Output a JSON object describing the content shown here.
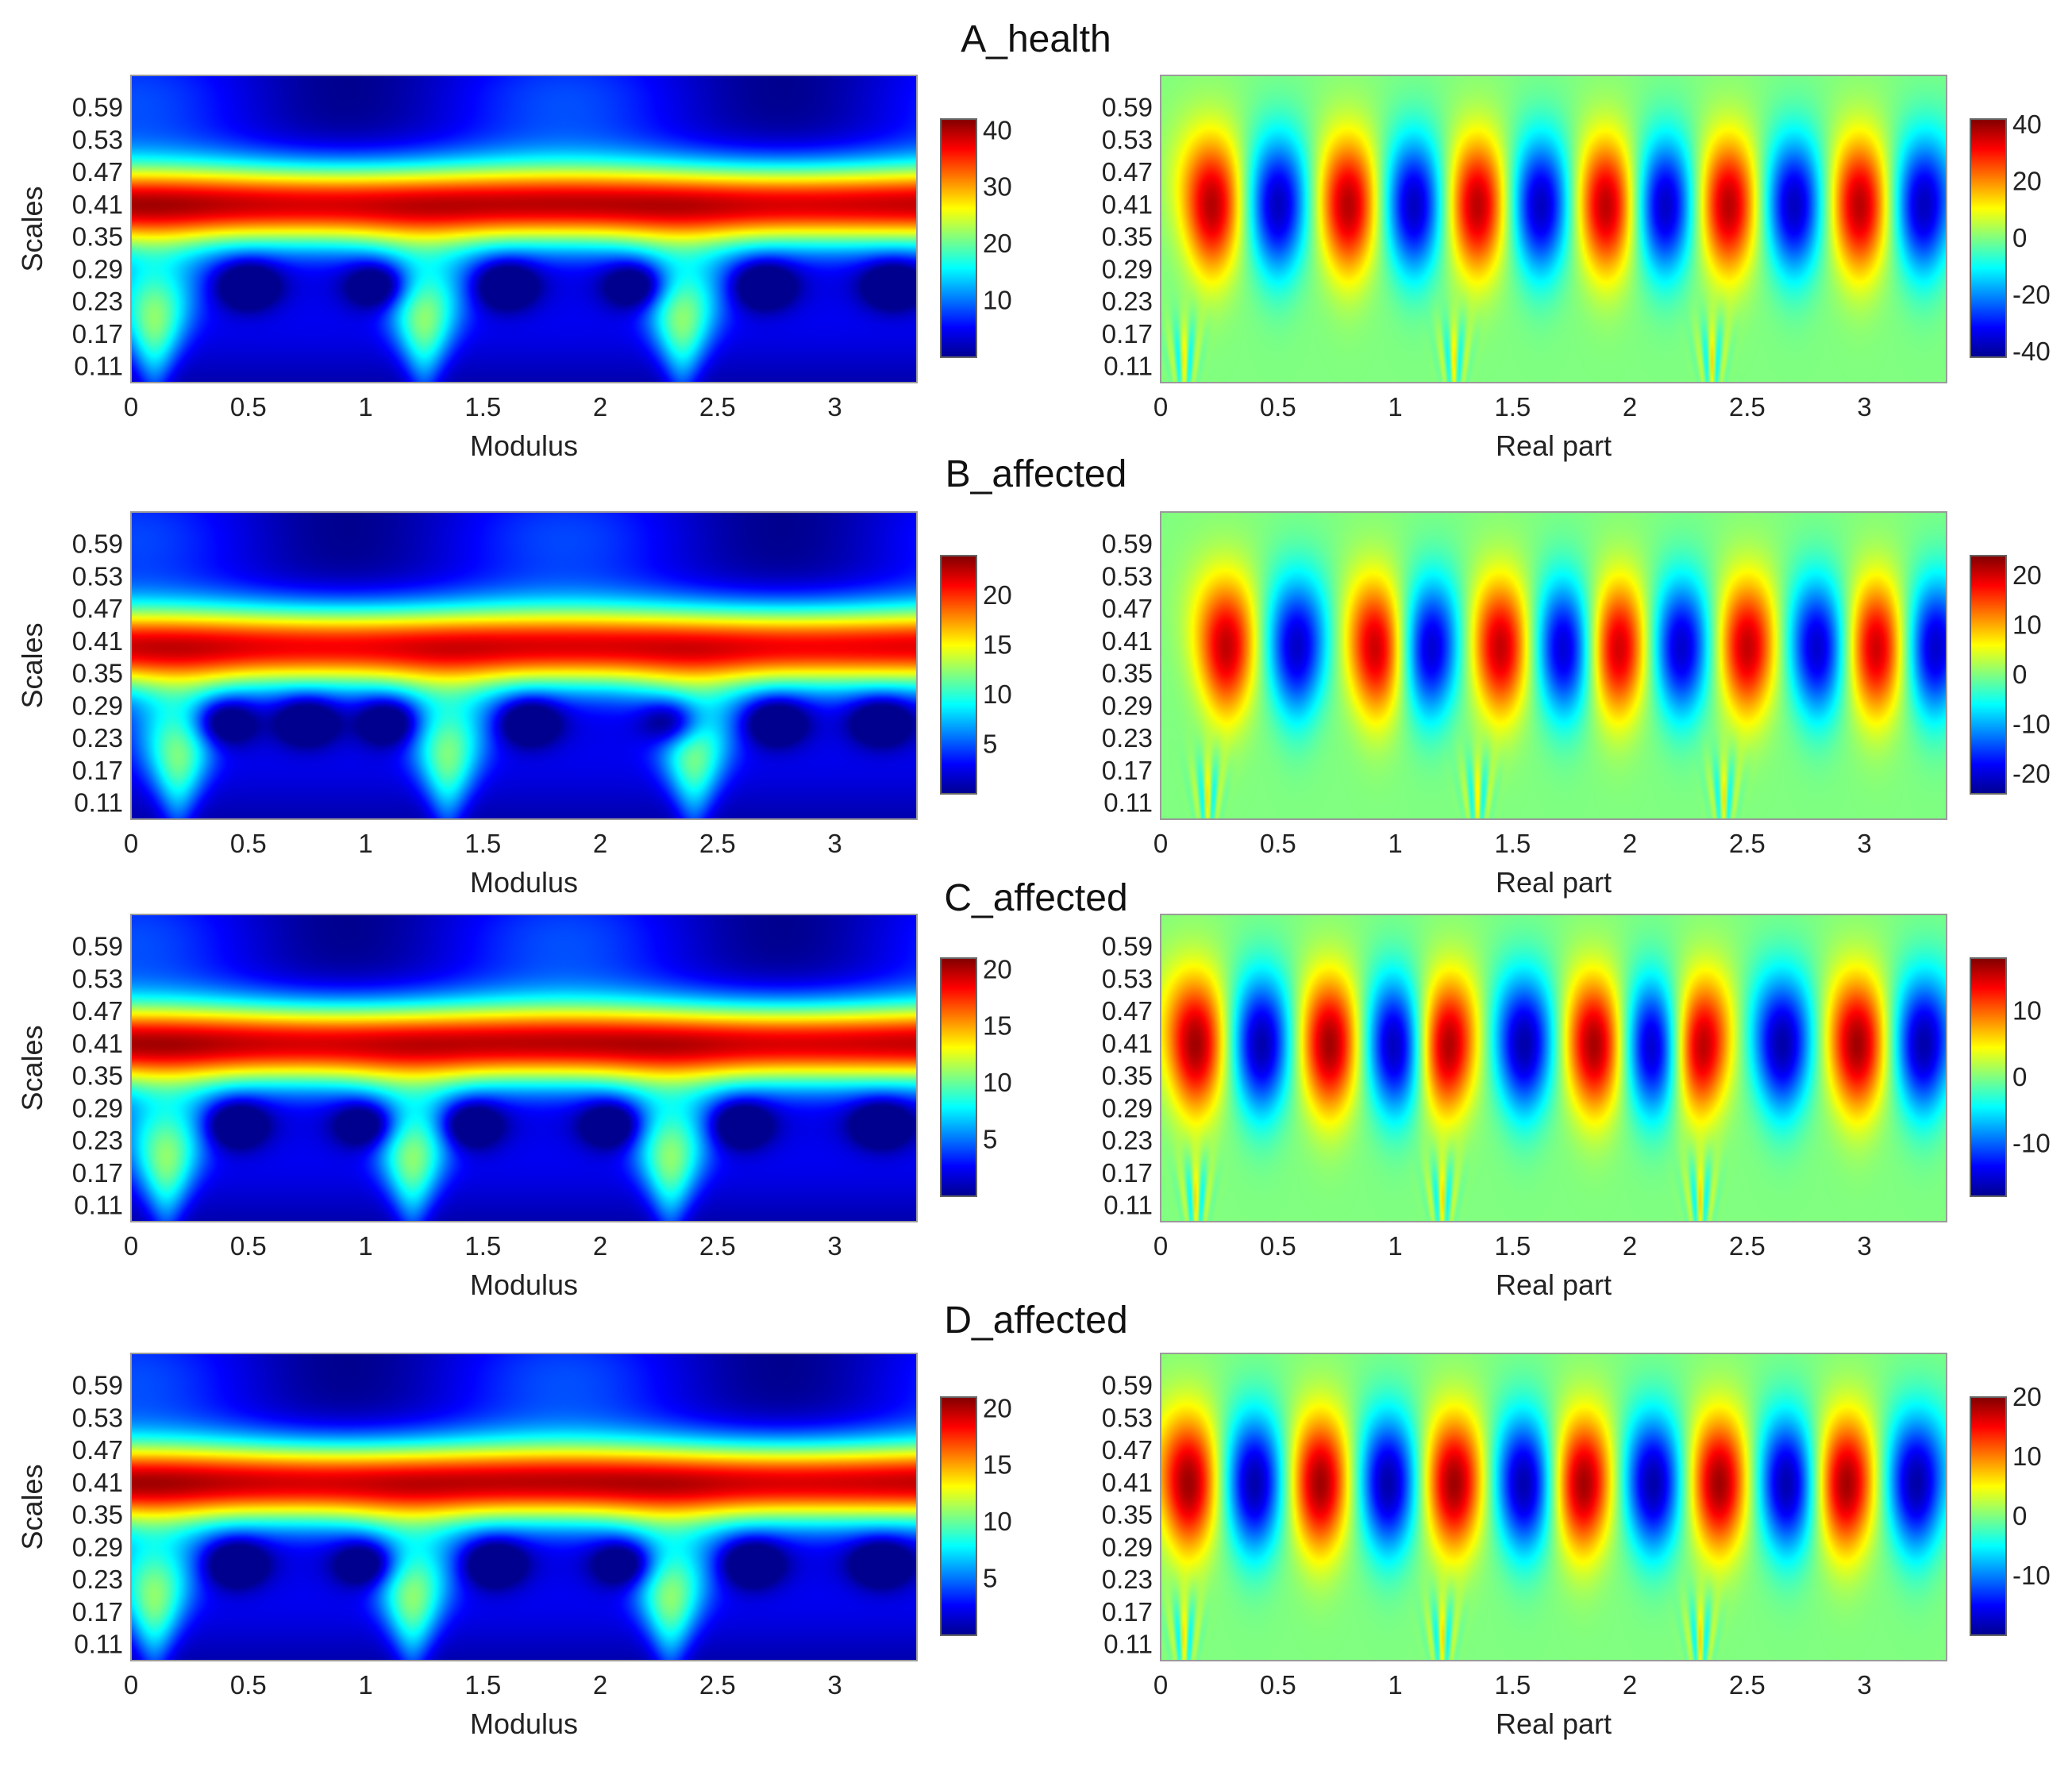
{
  "row_titles": [
    "A_health",
    "B_affected",
    "C_affected",
    "D_affected"
  ],
  "colormap": [
    "#00008f",
    "#0000ff",
    "#0080ff",
    "#00ffff",
    "#80ff80",
    "#ffff00",
    "#ff8000",
    "#ff0000",
    "#800000"
  ],
  "chart_data": [
    {
      "type": "heatmap",
      "row": "A_health",
      "kind": "modulus",
      "title": "",
      "xlabel": "Modulus",
      "ylabel": "Scales",
      "xlim": [
        0,
        3.35
      ],
      "ylim": [
        0.08,
        0.65
      ],
      "xticks": [
        0,
        0.5,
        1,
        1.5,
        2,
        2.5,
        3
      ],
      "xtick_labels": [
        "0",
        "0.5",
        "1",
        "1.5",
        "2",
        "2.5",
        "3"
      ],
      "yticks": [
        0.11,
        0.17,
        0.23,
        0.29,
        0.35,
        0.41,
        0.47,
        0.53,
        0.59
      ],
      "ytick_labels": [
        "0.11",
        "0.17",
        "0.23",
        "0.29",
        "0.35",
        "0.41",
        "0.47",
        "0.53",
        "0.59"
      ],
      "colorbar": {
        "min": 0,
        "max": 42,
        "ticks": [
          10,
          20,
          30,
          40
        ]
      },
      "ridge_scale": 0.41,
      "ridge_peak": 38,
      "cone_x": [
        0.1,
        1.25,
        2.35
      ],
      "hole_x": [
        0.5,
        1.05,
        1.6,
        2.15,
        2.7,
        3.25
      ]
    },
    {
      "type": "heatmap",
      "row": "A_health",
      "kind": "real",
      "title": "",
      "xlabel": "Real part",
      "ylabel": "",
      "xlim": [
        0,
        3.35
      ],
      "ylim": [
        0.08,
        0.65
      ],
      "xticks": [
        0,
        0.5,
        1,
        1.5,
        2,
        2.5,
        3
      ],
      "xtick_labels": [
        "0",
        "0.5",
        "1",
        "1.5",
        "2",
        "2.5",
        "3"
      ],
      "yticks": [
        0.11,
        0.17,
        0.23,
        0.29,
        0.35,
        0.41,
        0.47,
        0.53,
        0.59
      ],
      "ytick_labels": [
        "0.11",
        "0.17",
        "0.23",
        "0.29",
        "0.35",
        "0.41",
        "0.47",
        "0.53",
        "0.59"
      ],
      "colorbar": {
        "min": -42,
        "max": 42,
        "ticks": [
          40,
          20,
          0,
          -20,
          -40
        ]
      },
      "ridge_scale": 0.41,
      "ridge_peak": 38,
      "red_lobes_x": [
        0.22,
        0.8,
        1.35,
        1.9,
        2.42,
        2.98
      ],
      "blue_lobes_x": [
        0.5,
        1.08,
        1.62,
        2.15,
        2.7,
        3.25
      ],
      "cone_x": [
        0.1,
        1.25,
        2.35
      ]
    },
    {
      "type": "heatmap",
      "row": "B_affected",
      "kind": "modulus",
      "title": "",
      "xlabel": "Modulus",
      "ylabel": "Scales",
      "xlim": [
        0,
        3.35
      ],
      "ylim": [
        0.08,
        0.65
      ],
      "xticks": [
        0,
        0.5,
        1,
        1.5,
        2,
        2.5,
        3
      ],
      "xtick_labels": [
        "0",
        "0.5",
        "1",
        "1.5",
        "2",
        "2.5",
        "3"
      ],
      "yticks": [
        0.11,
        0.17,
        0.23,
        0.29,
        0.35,
        0.41,
        0.47,
        0.53,
        0.59
      ],
      "ytick_labels": [
        "0.11",
        "0.17",
        "0.23",
        "0.29",
        "0.35",
        "0.41",
        "0.47",
        "0.53",
        "0.59"
      ],
      "colorbar": {
        "min": 0,
        "max": 24,
        "ticks": [
          5,
          10,
          15,
          20
        ]
      },
      "ridge_scale": 0.4,
      "ridge_peak": 21,
      "cone_x": [
        0.2,
        1.35,
        2.4
      ],
      "hole_x": [
        0.4,
        0.75,
        1.1,
        1.7,
        2.3,
        2.75,
        3.2
      ]
    },
    {
      "type": "heatmap",
      "row": "B_affected",
      "kind": "real",
      "title": "",
      "xlabel": "Real part",
      "ylabel": "",
      "xlim": [
        0,
        3.35
      ],
      "ylim": [
        0.08,
        0.65
      ],
      "xticks": [
        0,
        0.5,
        1,
        1.5,
        2,
        2.5,
        3
      ],
      "xtick_labels": [
        "0",
        "0.5",
        "1",
        "1.5",
        "2",
        "2.5",
        "3"
      ],
      "yticks": [
        0.11,
        0.17,
        0.23,
        0.29,
        0.35,
        0.41,
        0.47,
        0.53,
        0.59
      ],
      "ytick_labels": [
        "0.11",
        "0.17",
        "0.23",
        "0.29",
        "0.35",
        "0.41",
        "0.47",
        "0.53",
        "0.59"
      ],
      "colorbar": {
        "min": -24,
        "max": 24,
        "ticks": [
          20,
          10,
          0,
          -10,
          -20
        ]
      },
      "ridge_scale": 0.4,
      "ridge_peak": 21,
      "red_lobes_x": [
        0.28,
        0.92,
        1.45,
        1.95,
        2.5,
        3.05
      ],
      "blue_lobes_x": [
        0.58,
        1.15,
        1.72,
        2.22,
        2.8,
        3.3
      ],
      "cone_x": [
        0.2,
        1.35,
        2.4
      ]
    },
    {
      "type": "heatmap",
      "row": "C_affected",
      "kind": "modulus",
      "title": "",
      "xlabel": "Modulus",
      "ylabel": "Scales",
      "xlim": [
        0,
        3.35
      ],
      "ylim": [
        0.08,
        0.65
      ],
      "xticks": [
        0,
        0.5,
        1,
        1.5,
        2,
        2.5,
        3
      ],
      "xtick_labels": [
        "0",
        "0.5",
        "1",
        "1.5",
        "2",
        "2.5",
        "3"
      ],
      "yticks": [
        0.11,
        0.17,
        0.23,
        0.29,
        0.35,
        0.41,
        0.47,
        0.53,
        0.59
      ],
      "ytick_labels": [
        "0.11",
        "0.17",
        "0.23",
        "0.29",
        "0.35",
        "0.41",
        "0.47",
        "0.53",
        "0.59"
      ],
      "colorbar": {
        "min": 0,
        "max": 21,
        "ticks": [
          5,
          10,
          15,
          20
        ]
      },
      "ridge_scale": 0.41,
      "ridge_peak": 19,
      "cone_x": [
        0.15,
        1.2,
        2.3
      ],
      "hole_x": [
        0.45,
        1.0,
        1.45,
        2.05,
        2.6,
        3.2
      ]
    },
    {
      "type": "heatmap",
      "row": "C_affected",
      "kind": "real",
      "title": "",
      "xlabel": "Real part",
      "ylabel": "",
      "xlim": [
        0,
        3.35
      ],
      "ylim": [
        0.08,
        0.65
      ],
      "xticks": [
        0,
        0.5,
        1,
        1.5,
        2,
        2.5,
        3
      ],
      "xtick_labels": [
        "0",
        "0.5",
        "1",
        "1.5",
        "2",
        "2.5",
        "3"
      ],
      "yticks": [
        0.11,
        0.17,
        0.23,
        0.29,
        0.35,
        0.41,
        0.47,
        0.53,
        0.59
      ],
      "ytick_labels": [
        "0.11",
        "0.17",
        "0.23",
        "0.29",
        "0.35",
        "0.41",
        "0.47",
        "0.53",
        "0.59"
      ],
      "colorbar": {
        "min": -18,
        "max": 18,
        "ticks": [
          10,
          0,
          -10
        ]
      },
      "ridge_scale": 0.41,
      "ridge_peak": 17,
      "red_lobes_x": [
        0.15,
        0.72,
        1.22,
        1.85,
        2.3,
        2.97
      ],
      "blue_lobes_x": [
        0.43,
        1.0,
        1.55,
        2.1,
        2.65,
        3.25
      ],
      "cone_x": [
        0.15,
        1.2,
        2.3
      ]
    },
    {
      "type": "heatmap",
      "row": "D_affected",
      "kind": "modulus",
      "title": "",
      "xlabel": "Modulus",
      "ylabel": "Scales",
      "xlim": [
        0,
        3.35
      ],
      "ylim": [
        0.08,
        0.65
      ],
      "xticks": [
        0,
        0.5,
        1,
        1.5,
        2,
        2.5,
        3
      ],
      "xtick_labels": [
        "0",
        "0.5",
        "1",
        "1.5",
        "2",
        "2.5",
        "3"
      ],
      "yticks": [
        0.11,
        0.17,
        0.23,
        0.29,
        0.35,
        0.41,
        0.47,
        0.53,
        0.59
      ],
      "ytick_labels": [
        "0.11",
        "0.17",
        "0.23",
        "0.29",
        "0.35",
        "0.41",
        "0.47",
        "0.53",
        "0.59"
      ],
      "colorbar": {
        "min": 0,
        "max": 21,
        "ticks": [
          5,
          10,
          15,
          20
        ]
      },
      "ridge_scale": 0.41,
      "ridge_peak": 19,
      "cone_x": [
        0.1,
        1.2,
        2.3
      ],
      "hole_x": [
        0.45,
        1.0,
        1.55,
        2.1,
        2.65,
        3.2
      ]
    },
    {
      "type": "heatmap",
      "row": "D_affected",
      "kind": "real",
      "title": "",
      "xlabel": "Real part",
      "ylabel": "",
      "xlim": [
        0,
        3.35
      ],
      "ylim": [
        0.08,
        0.65
      ],
      "xticks": [
        0,
        0.5,
        1,
        1.5,
        2,
        2.5,
        3
      ],
      "xtick_labels": [
        "0",
        "0.5",
        "1",
        "1.5",
        "2",
        "2.5",
        "3"
      ],
      "yticks": [
        0.11,
        0.17,
        0.23,
        0.29,
        0.35,
        0.41,
        0.47,
        0.53,
        0.59
      ],
      "ytick_labels": [
        "0.11",
        "0.17",
        "0.23",
        "0.29",
        "0.35",
        "0.41",
        "0.47",
        "0.53",
        "0.59"
      ],
      "colorbar": {
        "min": -20,
        "max": 20,
        "ticks": [
          20,
          10,
          0,
          -10
        ]
      },
      "ridge_scale": 0.41,
      "ridge_peak": 19,
      "red_lobes_x": [
        0.12,
        0.68,
        1.25,
        1.8,
        2.38,
        2.92
      ],
      "blue_lobes_x": [
        0.4,
        0.97,
        1.55,
        2.1,
        2.67,
        3.22
      ],
      "cone_x": [
        0.1,
        1.2,
        2.3
      ]
    }
  ]
}
